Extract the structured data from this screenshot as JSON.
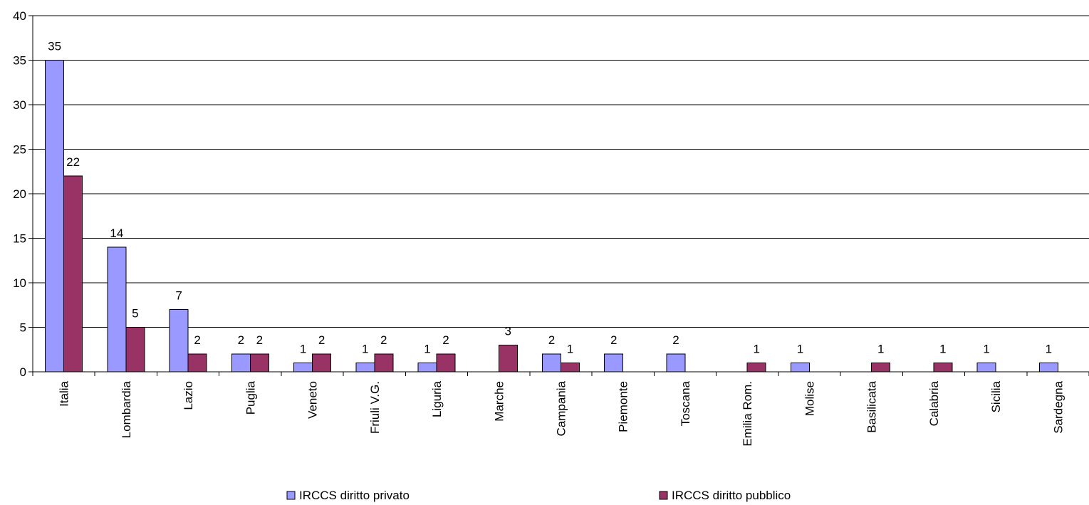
{
  "chart_data": {
    "type": "bar",
    "title": "",
    "xlabel": "",
    "ylabel": "",
    "ylim": [
      0,
      40
    ],
    "yticks": [
      0,
      5,
      10,
      15,
      20,
      25,
      30,
      35,
      40
    ],
    "grid": true,
    "legend_position": "bottom",
    "categories": [
      "Italia",
      "Lombardia",
      "Lazio",
      "Puglia",
      "Veneto",
      "Friuli V.G.",
      "Liguria",
      "Marche",
      "Campania",
      "Piemonte",
      "Toscana",
      "Emilia Rom.",
      "Molise",
      "Basilicata",
      "Calabria",
      "Sicilia",
      "Sardegna"
    ],
    "series": [
      {
        "name": "IRCCS diritto privato",
        "color": "#9999ff",
        "values": [
          35,
          14,
          7,
          2,
          1,
          1,
          1,
          null,
          2,
          2,
          2,
          null,
          1,
          null,
          null,
          1,
          1
        ]
      },
      {
        "name": "IRCCS diritto pubblico",
        "color": "#993366",
        "values": [
          22,
          5,
          2,
          2,
          2,
          2,
          2,
          3,
          1,
          null,
          null,
          1,
          null,
          1,
          1,
          null,
          null
        ]
      }
    ]
  }
}
